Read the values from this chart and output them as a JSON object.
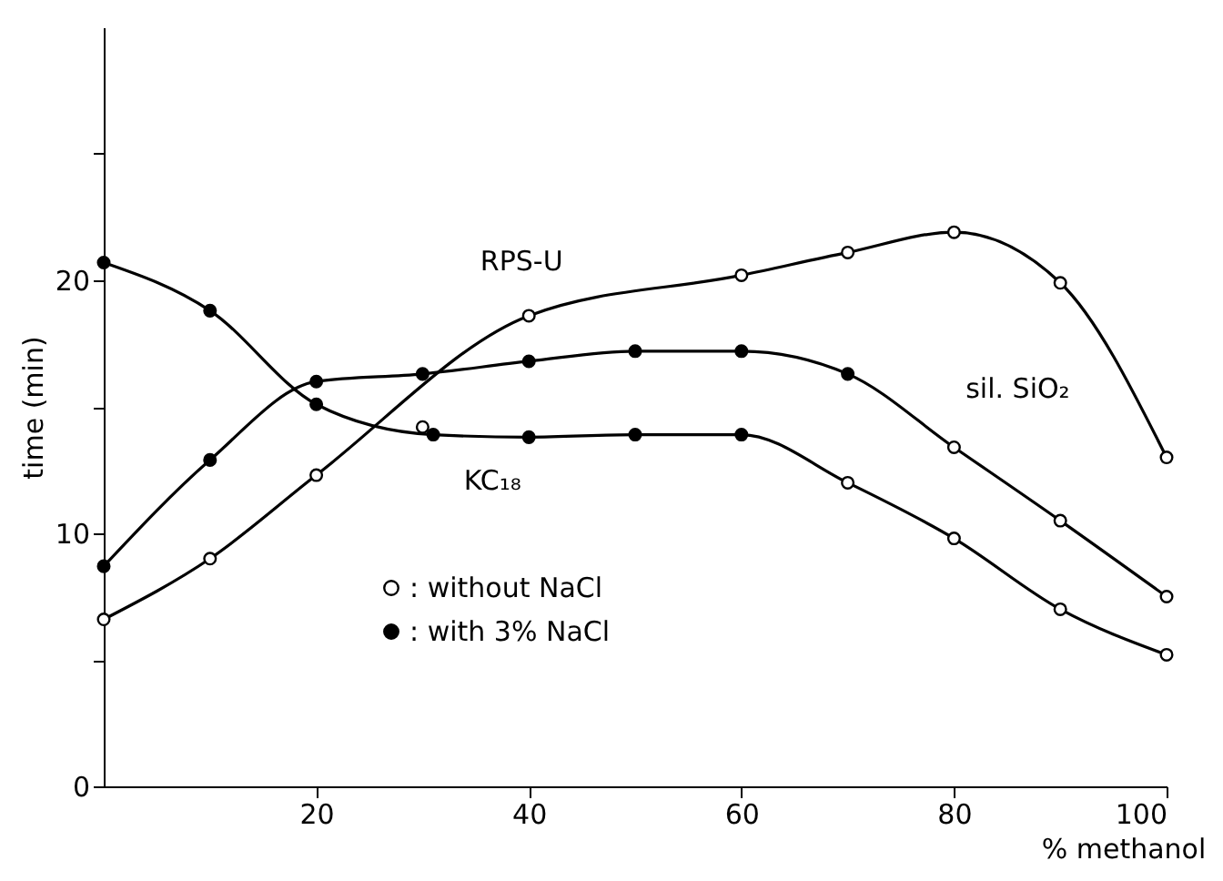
{
  "chart_data": {
    "type": "line",
    "xlabel": "% methanol",
    "ylabel": "time (min)",
    "xlim": [
      0,
      100
    ],
    "xticks": [
      20,
      40,
      60,
      80,
      100
    ],
    "ylim": [
      0,
      30
    ],
    "yticks": [
      0,
      {
        "value": 5,
        "label": null
      },
      10,
      {
        "value": 15,
        "label": null
      },
      20,
      {
        "value": 25,
        "label": null
      }
    ],
    "grid": false,
    "legend": "bottom left",
    "line_style": "solid",
    "series": [
      {
        "name": "RPS-U",
        "color": "#000000",
        "x": [
          0,
          10,
          20,
          40,
          60,
          70,
          80,
          90,
          100
        ],
        "values": [
          6.6,
          9.0,
          12.3,
          18.6,
          20.2,
          21.1,
          21.9,
          19.9,
          13.0
        ]
      },
      {
        "name": "sil. SiO₂",
        "color": "#000000",
        "x": [
          0,
          10,
          20,
          30,
          40,
          50,
          60,
          70,
          80,
          90,
          100
        ],
        "values": [
          8.7,
          12.9,
          16.0,
          16.3,
          16.8,
          17.2,
          17.2,
          16.3,
          13.4,
          10.5,
          7.5
        ]
      },
      {
        "name": "KC₁₈",
        "color": "#000000",
        "x": [
          0,
          10,
          20,
          31,
          40,
          50,
          60,
          70,
          80,
          90,
          100
        ],
        "values": [
          20.7,
          18.8,
          15.1,
          13.9,
          13.8,
          13.9,
          13.9,
          12.0,
          9.8,
          7.0,
          5.2
        ]
      },
      {
        "name": ": without NaCl",
        "type": "scatter",
        "marker": "circle",
        "color": "#ffffff",
        "x": [
          0,
          10,
          20,
          40,
          60,
          70,
          80,
          90,
          100,
          80,
          90,
          100,
          30,
          70,
          80,
          90,
          100
        ],
        "values": [
          6.6,
          9.0,
          12.3,
          18.6,
          20.2,
          21.1,
          21.9,
          19.9,
          13.0,
          13.4,
          10.5,
          7.5,
          14.2,
          12.0,
          9.8,
          7.0,
          5.2
        ]
      },
      {
        "name": ": with 3% NaCl",
        "type": "scatter",
        "marker": "circle",
        "color": "#000000",
        "x": [
          0,
          10,
          20,
          30,
          40,
          50,
          60,
          70,
          0,
          10,
          20,
          31,
          40,
          50,
          60
        ],
        "values": [
          8.7,
          12.9,
          16.0,
          16.3,
          16.8,
          17.2,
          17.2,
          16.3,
          20.7,
          18.8,
          15.1,
          13.9,
          13.8,
          13.9,
          13.9
        ]
      }
    ]
  }
}
